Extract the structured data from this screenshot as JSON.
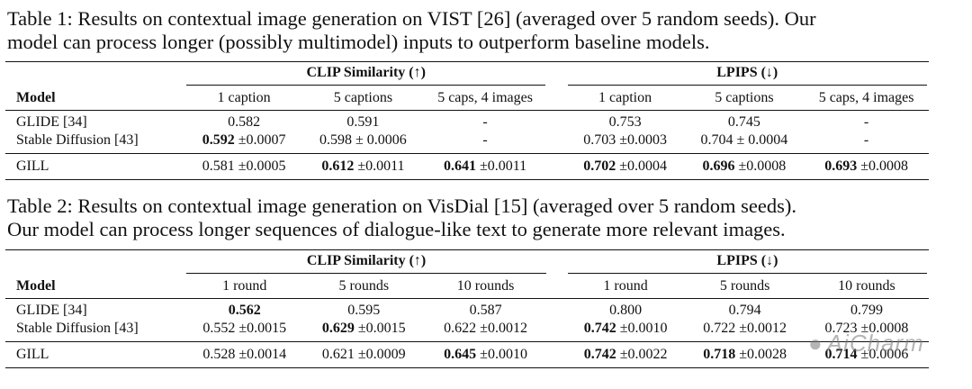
{
  "table1": {
    "caption": "Table 1: Results on contextual image generation on VIST [26] (averaged over 5 random seeds). Our model can process longer (possibly multimodel) inputs to outperform baseline models.",
    "caption_line1": "Table 1: Results on contextual image generation on VIST [26] (averaged over 5 random seeds). Our",
    "caption_line2": "model can process longer (possibly multimodel) inputs to outperform baseline models.",
    "group_clip": "CLIP Similarity (↑)",
    "group_lpips": "LPIPS (↓)",
    "model_header": "Model",
    "columns": [
      "1 caption",
      "5 captions",
      "5 caps, 4 images",
      "1 caption",
      "5 captions",
      "5 caps, 4 images"
    ],
    "rows": [
      {
        "model": "GLIDE [34]",
        "cells": [
          {
            "v": "0.582",
            "s": "",
            "b": false
          },
          {
            "v": "0.591",
            "s": "",
            "b": false
          },
          {
            "v": "-",
            "s": "",
            "b": false
          },
          {
            "v": "0.753",
            "s": "",
            "b": false
          },
          {
            "v": "0.745",
            "s": "",
            "b": false
          },
          {
            "v": "-",
            "s": "",
            "b": false
          }
        ]
      },
      {
        "model": "Stable Diffusion [43]",
        "cells": [
          {
            "v": "0.592",
            "s": " ±0.0007",
            "b": true
          },
          {
            "v": "0.598",
            "s": " ± 0.0006",
            "b": false
          },
          {
            "v": "-",
            "s": "",
            "b": false
          },
          {
            "v": "0.703",
            "s": " ±0.0003",
            "b": false
          },
          {
            "v": "0.704",
            "s": " ± 0.0004",
            "b": false
          },
          {
            "v": "-",
            "s": "",
            "b": false
          }
        ]
      },
      {
        "model": "GILL",
        "cells": [
          {
            "v": "0.581",
            "s": " ±0.0005",
            "b": false
          },
          {
            "v": "0.612",
            "s": " ±0.0011",
            "b": true
          },
          {
            "v": "0.641",
            "s": " ±0.0011",
            "b": true
          },
          {
            "v": "0.702",
            "s": " ±0.0004",
            "b": true
          },
          {
            "v": "0.696",
            "s": " ±0.0008",
            "b": true
          },
          {
            "v": "0.693",
            "s": " ±0.0008",
            "b": true
          }
        ]
      }
    ]
  },
  "table2": {
    "caption": "Table 2: Results on contextual image generation on VisDial [15] (averaged over 5 random seeds). Our model can process longer sequences of dialogue-like text to generate more relevant images.",
    "caption_line1": "Table 2: Results on contextual image generation on VisDial [15] (averaged over 5 random seeds).",
    "caption_line2": "Our model can process longer sequences of dialogue-like text to generate more relevant images.",
    "group_clip": "CLIP Similarity (↑)",
    "group_lpips": "LPIPS (↓)",
    "model_header": "Model",
    "columns": [
      "1 round",
      "5 rounds",
      "10 rounds",
      "1 round",
      "5 rounds",
      "10 rounds"
    ],
    "rows": [
      {
        "model": "GLIDE [34]",
        "cells": [
          {
            "v": "0.562",
            "s": "",
            "b": true
          },
          {
            "v": "0.595",
            "s": "",
            "b": false
          },
          {
            "v": "0.587",
            "s": "",
            "b": false
          },
          {
            "v": "0.800",
            "s": "",
            "b": false
          },
          {
            "v": "0.794",
            "s": "",
            "b": false
          },
          {
            "v": "0.799",
            "s": "",
            "b": false
          }
        ]
      },
      {
        "model": "Stable Diffusion [43]",
        "cells": [
          {
            "v": "0.552",
            "s": " ±0.0015",
            "b": false
          },
          {
            "v": "0.629",
            "s": " ±0.0015",
            "b": true
          },
          {
            "v": "0.622",
            "s": " ±0.0012",
            "b": false
          },
          {
            "v": "0.742",
            "s": " ±0.0010",
            "b": true
          },
          {
            "v": "0.722",
            "s": " ±0.0012",
            "b": false
          },
          {
            "v": "0.723",
            "s": " ±0.0008",
            "b": false
          }
        ]
      },
      {
        "model": "GILL",
        "cells": [
          {
            "v": "0.528",
            "s": " ±0.0014",
            "b": false
          },
          {
            "v": "0.621",
            "s": " ±0.0009",
            "b": false
          },
          {
            "v": "0.645",
            "s": " ±0.0010",
            "b": true
          },
          {
            "v": "0.742",
            "s": " ±0.0022",
            "b": true
          },
          {
            "v": "0.718",
            "s": " ±0.0028",
            "b": true
          },
          {
            "v": "0.714",
            "s": " ±0.0006",
            "b": true
          }
        ]
      }
    ]
  },
  "watermark": {
    "text": "AiCharm",
    "icon": "wechat-icon"
  }
}
